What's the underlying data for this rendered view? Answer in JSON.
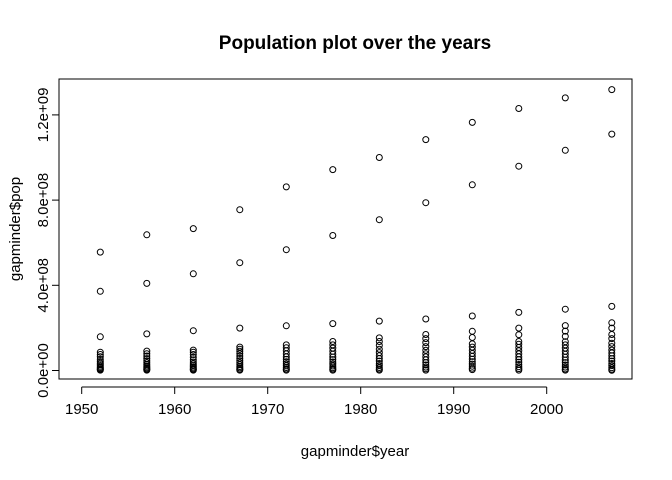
{
  "chart_data": {
    "type": "scatter",
    "title": "Population plot over the years",
    "xlabel": "gapminder$year",
    "ylabel": "gapminder$pop",
    "xlim": [
      1950,
      2008
    ],
    "ylim": [
      0,
      1330000000
    ],
    "x_ticks": [
      1950,
      1960,
      1970,
      1980,
      1990,
      2000
    ],
    "x_tick_labels": [
      "1950",
      "1960",
      "1970",
      "1980",
      "1990",
      "2000"
    ],
    "y_ticks": [
      0,
      400000000,
      800000000,
      1200000000
    ],
    "y_tick_labels": [
      "0.0e+00",
      "4.0e+08",
      "8.0e+08",
      "1.2e+09"
    ],
    "grid": false,
    "marker": "open-circle",
    "points": [
      {
        "x": 1952,
        "y": 556000000
      },
      {
        "x": 1952,
        "y": 372000000
      },
      {
        "x": 1952,
        "y": 158000000
      },
      {
        "x": 1952,
        "y": 86000000
      },
      {
        "x": 1952,
        "y": 75000000
      },
      {
        "x": 1952,
        "y": 65000000
      },
      {
        "x": 1952,
        "y": 52000000
      },
      {
        "x": 1952,
        "y": 42000000
      },
      {
        "x": 1952,
        "y": 34000000
      },
      {
        "x": 1952,
        "y": 27000000
      },
      {
        "x": 1952,
        "y": 20000000
      },
      {
        "x": 1952,
        "y": 14000000
      },
      {
        "x": 1952,
        "y": 9000000
      },
      {
        "x": 1952,
        "y": 5000000
      },
      {
        "x": 1952,
        "y": 2000000
      },
      {
        "x": 1957,
        "y": 637000000
      },
      {
        "x": 1957,
        "y": 409000000
      },
      {
        "x": 1957,
        "y": 172000000
      },
      {
        "x": 1957,
        "y": 91000000
      },
      {
        "x": 1957,
        "y": 79000000
      },
      {
        "x": 1957,
        "y": 68000000
      },
      {
        "x": 1957,
        "y": 56000000
      },
      {
        "x": 1957,
        "y": 45000000
      },
      {
        "x": 1957,
        "y": 36000000
      },
      {
        "x": 1957,
        "y": 28000000
      },
      {
        "x": 1957,
        "y": 21000000
      },
      {
        "x": 1957,
        "y": 15000000
      },
      {
        "x": 1957,
        "y": 10000000
      },
      {
        "x": 1957,
        "y": 5000000
      },
      {
        "x": 1957,
        "y": 2000000
      },
      {
        "x": 1962,
        "y": 666000000
      },
      {
        "x": 1962,
        "y": 454000000
      },
      {
        "x": 1962,
        "y": 187000000
      },
      {
        "x": 1962,
        "y": 96000000
      },
      {
        "x": 1962,
        "y": 86000000
      },
      {
        "x": 1962,
        "y": 75000000
      },
      {
        "x": 1962,
        "y": 62000000
      },
      {
        "x": 1962,
        "y": 50000000
      },
      {
        "x": 1962,
        "y": 40000000
      },
      {
        "x": 1962,
        "y": 31000000
      },
      {
        "x": 1962,
        "y": 23000000
      },
      {
        "x": 1962,
        "y": 16000000
      },
      {
        "x": 1962,
        "y": 10000000
      },
      {
        "x": 1962,
        "y": 5000000
      },
      {
        "x": 1962,
        "y": 2000000
      },
      {
        "x": 1967,
        "y": 755000000
      },
      {
        "x": 1967,
        "y": 506000000
      },
      {
        "x": 1967,
        "y": 199000000
      },
      {
        "x": 1967,
        "y": 110000000
      },
      {
        "x": 1967,
        "y": 100000000
      },
      {
        "x": 1967,
        "y": 90000000
      },
      {
        "x": 1967,
        "y": 80000000
      },
      {
        "x": 1967,
        "y": 68000000
      },
      {
        "x": 1967,
        "y": 57000000
      },
      {
        "x": 1967,
        "y": 46000000
      },
      {
        "x": 1967,
        "y": 36000000
      },
      {
        "x": 1967,
        "y": 27000000
      },
      {
        "x": 1967,
        "y": 19000000
      },
      {
        "x": 1967,
        "y": 12000000
      },
      {
        "x": 1967,
        "y": 6000000
      },
      {
        "x": 1967,
        "y": 2000000
      },
      {
        "x": 1972,
        "y": 862000000
      },
      {
        "x": 1972,
        "y": 567000000
      },
      {
        "x": 1972,
        "y": 210000000
      },
      {
        "x": 1972,
        "y": 120000000
      },
      {
        "x": 1972,
        "y": 107000000
      },
      {
        "x": 1972,
        "y": 93000000
      },
      {
        "x": 1972,
        "y": 78000000
      },
      {
        "x": 1972,
        "y": 64000000
      },
      {
        "x": 1972,
        "y": 52000000
      },
      {
        "x": 1972,
        "y": 41000000
      },
      {
        "x": 1972,
        "y": 31000000
      },
      {
        "x": 1972,
        "y": 22000000
      },
      {
        "x": 1972,
        "y": 14000000
      },
      {
        "x": 1972,
        "y": 7000000
      },
      {
        "x": 1972,
        "y": 2000000
      },
      {
        "x": 1977,
        "y": 943000000
      },
      {
        "x": 1977,
        "y": 634000000
      },
      {
        "x": 1977,
        "y": 220000000
      },
      {
        "x": 1977,
        "y": 136000000
      },
      {
        "x": 1977,
        "y": 120000000
      },
      {
        "x": 1977,
        "y": 105000000
      },
      {
        "x": 1977,
        "y": 90000000
      },
      {
        "x": 1977,
        "y": 76000000
      },
      {
        "x": 1977,
        "y": 63000000
      },
      {
        "x": 1977,
        "y": 51000000
      },
      {
        "x": 1977,
        "y": 40000000
      },
      {
        "x": 1977,
        "y": 30000000
      },
      {
        "x": 1977,
        "y": 21000000
      },
      {
        "x": 1977,
        "y": 13000000
      },
      {
        "x": 1977,
        "y": 7000000
      },
      {
        "x": 1977,
        "y": 2000000
      },
      {
        "x": 1982,
        "y": 1000000000
      },
      {
        "x": 1982,
        "y": 708000000
      },
      {
        "x": 1982,
        "y": 232000000
      },
      {
        "x": 1982,
        "y": 153000000
      },
      {
        "x": 1982,
        "y": 136000000
      },
      {
        "x": 1982,
        "y": 118000000
      },
      {
        "x": 1982,
        "y": 100000000
      },
      {
        "x": 1982,
        "y": 84000000
      },
      {
        "x": 1982,
        "y": 69000000
      },
      {
        "x": 1982,
        "y": 56000000
      },
      {
        "x": 1982,
        "y": 44000000
      },
      {
        "x": 1982,
        "y": 33000000
      },
      {
        "x": 1982,
        "y": 23000000
      },
      {
        "x": 1982,
        "y": 14000000
      },
      {
        "x": 1982,
        "y": 7000000
      },
      {
        "x": 1982,
        "y": 2000000
      },
      {
        "x": 1987,
        "y": 1084000000
      },
      {
        "x": 1987,
        "y": 788000000
      },
      {
        "x": 1987,
        "y": 242000000
      },
      {
        "x": 1987,
        "y": 169000000
      },
      {
        "x": 1987,
        "y": 150000000
      },
      {
        "x": 1987,
        "y": 131000000
      },
      {
        "x": 1987,
        "y": 112000000
      },
      {
        "x": 1987,
        "y": 95000000
      },
      {
        "x": 1987,
        "y": 79000000
      },
      {
        "x": 1987,
        "y": 64000000
      },
      {
        "x": 1987,
        "y": 50000000
      },
      {
        "x": 1987,
        "y": 37000000
      },
      {
        "x": 1987,
        "y": 26000000
      },
      {
        "x": 1987,
        "y": 16000000
      },
      {
        "x": 1987,
        "y": 8000000
      },
      {
        "x": 1987,
        "y": 2000000
      },
      {
        "x": 1992,
        "y": 1165000000
      },
      {
        "x": 1992,
        "y": 872000000
      },
      {
        "x": 1992,
        "y": 256000000
      },
      {
        "x": 1992,
        "y": 184000000
      },
      {
        "x": 1992,
        "y": 155000000
      },
      {
        "x": 1992,
        "y": 125000000
      },
      {
        "x": 1992,
        "y": 110000000
      },
      {
        "x": 1992,
        "y": 95000000
      },
      {
        "x": 1992,
        "y": 80000000
      },
      {
        "x": 1992,
        "y": 66000000
      },
      {
        "x": 1992,
        "y": 53000000
      },
      {
        "x": 1992,
        "y": 41000000
      },
      {
        "x": 1992,
        "y": 30000000
      },
      {
        "x": 1992,
        "y": 20000000
      },
      {
        "x": 1992,
        "y": 11000000
      },
      {
        "x": 1992,
        "y": 4000000
      },
      {
        "x": 1997,
        "y": 1230000000
      },
      {
        "x": 1997,
        "y": 959000000
      },
      {
        "x": 1997,
        "y": 273000000
      },
      {
        "x": 1997,
        "y": 199000000
      },
      {
        "x": 1997,
        "y": 168000000
      },
      {
        "x": 1997,
        "y": 136000000
      },
      {
        "x": 1997,
        "y": 123000000
      },
      {
        "x": 1997,
        "y": 108000000
      },
      {
        "x": 1997,
        "y": 93000000
      },
      {
        "x": 1997,
        "y": 78000000
      },
      {
        "x": 1997,
        "y": 64000000
      },
      {
        "x": 1997,
        "y": 51000000
      },
      {
        "x": 1997,
        "y": 39000000
      },
      {
        "x": 1997,
        "y": 28000000
      },
      {
        "x": 1997,
        "y": 18000000
      },
      {
        "x": 1997,
        "y": 9000000
      },
      {
        "x": 1997,
        "y": 2000000
      },
      {
        "x": 2002,
        "y": 1280000000
      },
      {
        "x": 2002,
        "y": 1034000000
      },
      {
        "x": 2002,
        "y": 288000000
      },
      {
        "x": 2002,
        "y": 211000000
      },
      {
        "x": 2002,
        "y": 185000000
      },
      {
        "x": 2002,
        "y": 160000000
      },
      {
        "x": 2002,
        "y": 135000000
      },
      {
        "x": 2002,
        "y": 120000000
      },
      {
        "x": 2002,
        "y": 105000000
      },
      {
        "x": 2002,
        "y": 90000000
      },
      {
        "x": 2002,
        "y": 76000000
      },
      {
        "x": 2002,
        "y": 62000000
      },
      {
        "x": 2002,
        "y": 49000000
      },
      {
        "x": 2002,
        "y": 37000000
      },
      {
        "x": 2002,
        "y": 26000000
      },
      {
        "x": 2002,
        "y": 16000000
      },
      {
        "x": 2002,
        "y": 7000000
      },
      {
        "x": 2002,
        "y": 2000000
      },
      {
        "x": 2007,
        "y": 1319000000
      },
      {
        "x": 2007,
        "y": 1110000000
      },
      {
        "x": 2007,
        "y": 301000000
      },
      {
        "x": 2007,
        "y": 224000000
      },
      {
        "x": 2007,
        "y": 199000000
      },
      {
        "x": 2007,
        "y": 169000000
      },
      {
        "x": 2007,
        "y": 150000000
      },
      {
        "x": 2007,
        "y": 128000000
      },
      {
        "x": 2007,
        "y": 112000000
      },
      {
        "x": 2007,
        "y": 96000000
      },
      {
        "x": 2007,
        "y": 82000000
      },
      {
        "x": 2007,
        "y": 69000000
      },
      {
        "x": 2007,
        "y": 56000000
      },
      {
        "x": 2007,
        "y": 44000000
      },
      {
        "x": 2007,
        "y": 33000000
      },
      {
        "x": 2007,
        "y": 23000000
      },
      {
        "x": 2007,
        "y": 13000000
      },
      {
        "x": 2007,
        "y": 5000000
      },
      {
        "x": 2007,
        "y": 1000000
      }
    ]
  }
}
